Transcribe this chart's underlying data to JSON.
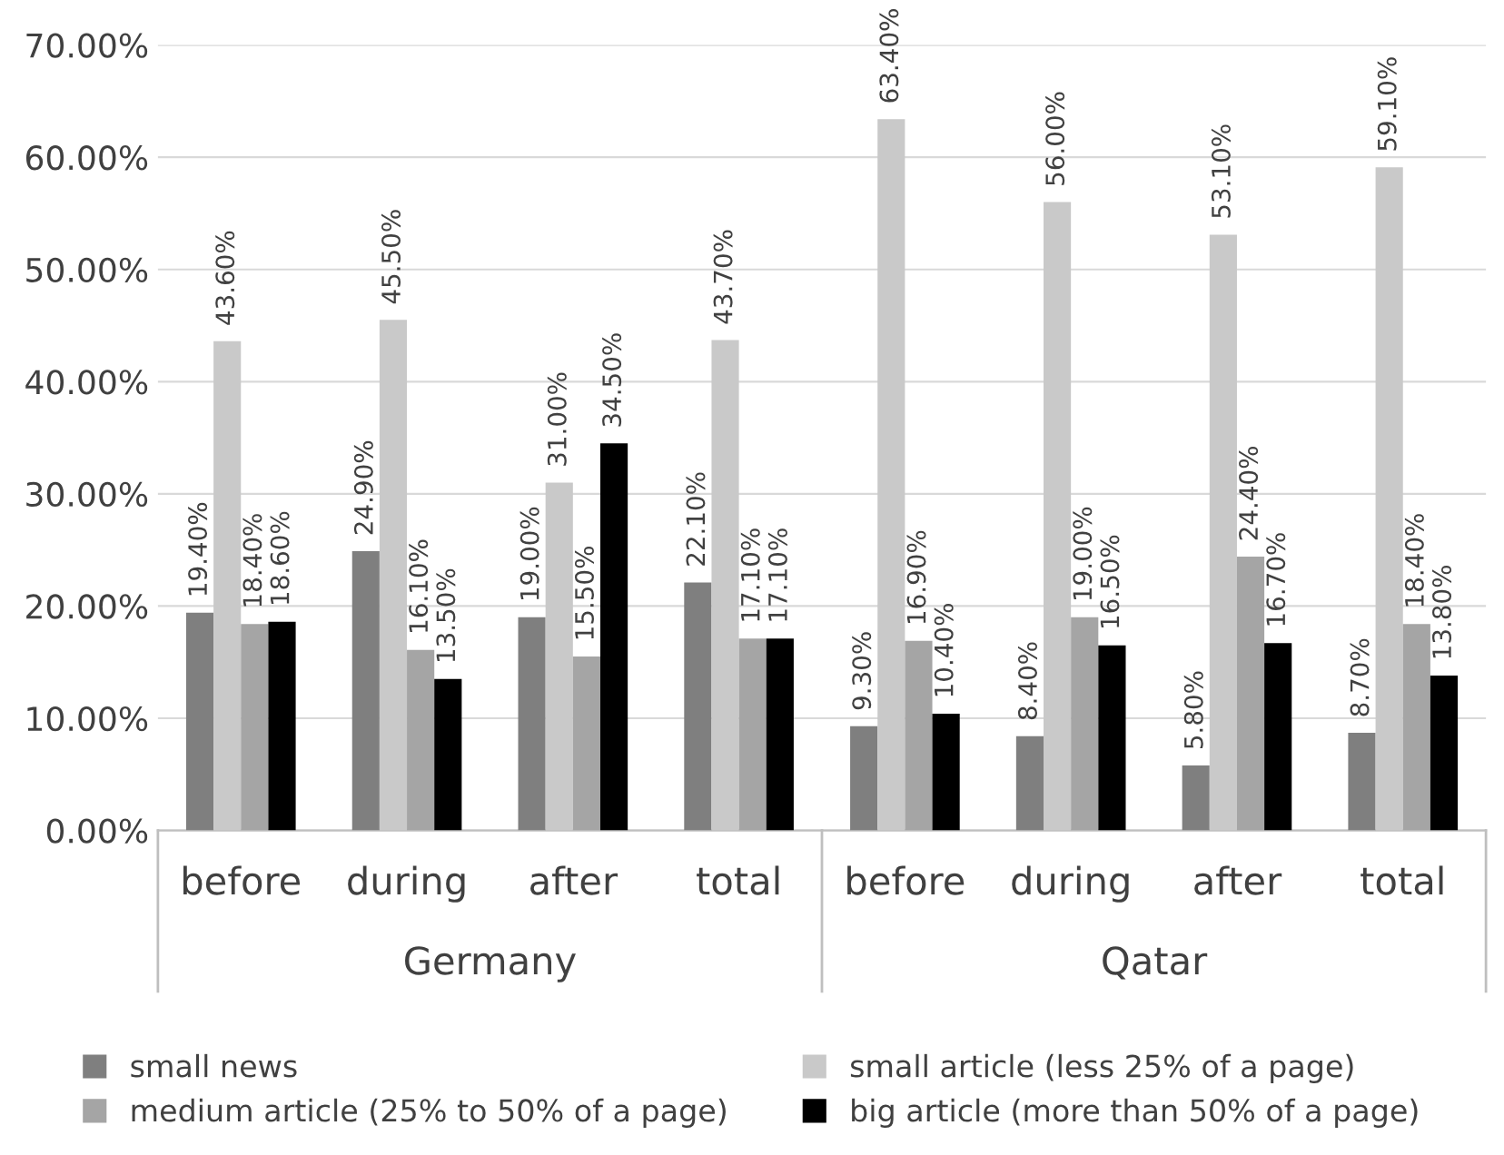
{
  "chart_data": {
    "type": "bar",
    "categories": [
      "before",
      "during",
      "after",
      "total",
      "before",
      "during",
      "after",
      "total"
    ],
    "annotations": [
      "Germany",
      "Qatar"
    ],
    "series": [
      {
        "name": "small news",
        "color": "#7f7f7f",
        "values": [
          19.4,
          24.9,
          19.0,
          22.1,
          9.3,
          8.4,
          5.8,
          8.7
        ],
        "value_labels": [
          "19.40%",
          "24.90%",
          "19.00%",
          "22.10%",
          "9.30%",
          "8.40%",
          "5.80%",
          "8.70%"
        ]
      },
      {
        "name": "small article (less 25% of a page)",
        "color": "#c9c9c9",
        "values": [
          43.6,
          45.5,
          31.0,
          43.7,
          63.4,
          56.0,
          53.1,
          59.1
        ],
        "value_labels": [
          "43.60%",
          "45.50%",
          "31.00%",
          "43.70%",
          "63.40%",
          "56.00%",
          "53.10%",
          "59.10%"
        ]
      },
      {
        "name": "medium article (25% to 50% of a page)",
        "color": "#a5a5a5",
        "values": [
          18.4,
          16.1,
          15.5,
          17.1,
          16.9,
          19.0,
          24.4,
          18.4
        ],
        "value_labels": [
          "18.40%",
          "16.10%",
          "15.50%",
          "17.10%",
          "16.90%",
          "19.00%",
          "24.40%",
          "18.40%"
        ]
      },
      {
        "name": "big article (more than 50% of a page)",
        "color": "#000000",
        "values": [
          18.6,
          13.5,
          34.5,
          17.1,
          10.4,
          16.5,
          16.7,
          13.8
        ],
        "value_labels": [
          "18.60%",
          "13.50%",
          "34.50%",
          "17.10%",
          "10.40%",
          "16.50%",
          "16.70%",
          "13.80%"
        ]
      }
    ],
    "ylim": [
      0,
      70
    ],
    "yticks": [
      {
        "value": 0,
        "label": "0.00%"
      },
      {
        "value": 10,
        "label": "10.00%"
      },
      {
        "value": 20,
        "label": "20.00%"
      },
      {
        "value": 30,
        "label": "30.00%"
      },
      {
        "value": 40,
        "label": "40.00%"
      },
      {
        "value": 50,
        "label": "50.00%"
      },
      {
        "value": 60,
        "label": "60.00%"
      },
      {
        "value": 70,
        "label": "70.00%"
      }
    ],
    "grid": "y",
    "legend": "bottom"
  }
}
